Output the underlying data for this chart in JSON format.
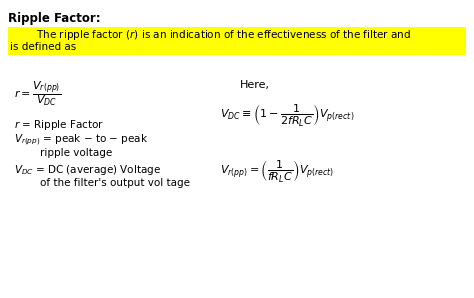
{
  "background_color": "#ffffff",
  "highlight_color": "#ffff00",
  "figsize": [
    4.74,
    2.98
  ],
  "dpi": 100,
  "title": "Ripple Factor:",
  "title_fontsize": 8.5,
  "body_fontsize": 7.5,
  "math_fontsize": 8.0,
  "highlight_line1": "        The ripple factor (r) is an indication of the effectiveness of the filter and",
  "highlight_line2": "is defined as"
}
